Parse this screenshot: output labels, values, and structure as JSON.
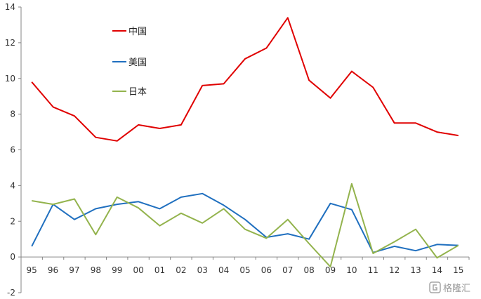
{
  "chart_data": {
    "type": "line",
    "title": "",
    "xlabel": "",
    "ylabel": "",
    "categories": [
      "95",
      "96",
      "97",
      "98",
      "99",
      "00",
      "01",
      "02",
      "03",
      "04",
      "05",
      "06",
      "07",
      "08",
      "09",
      "10",
      "11",
      "12",
      "13",
      "14",
      "15"
    ],
    "ylim": [
      -2,
      14
    ],
    "yticks": [
      -2,
      0,
      2,
      4,
      6,
      8,
      10,
      12,
      14
    ],
    "grid": false,
    "legend_placement": "top-left",
    "series": [
      {
        "name": "中国",
        "color": "#e00000",
        "values": [
          9.8,
          8.4,
          7.9,
          6.7,
          6.5,
          7.4,
          7.2,
          7.4,
          9.6,
          9.7,
          11.1,
          11.7,
          13.4,
          9.9,
          8.9,
          10.4,
          9.5,
          7.5,
          7.5,
          7.0,
          6.8
        ]
      },
      {
        "name": "美国",
        "color": "#1f6fbf",
        "values": [
          0.6,
          2.95,
          2.1,
          2.7,
          2.95,
          3.1,
          2.7,
          3.35,
          3.55,
          2.9,
          2.1,
          1.1,
          1.3,
          1.0,
          3.0,
          2.65,
          0.25,
          0.6,
          0.35,
          0.7,
          0.65
        ]
      },
      {
        "name": "日本",
        "color": "#93b34d",
        "values": [
          3.15,
          2.95,
          3.25,
          1.25,
          3.35,
          2.75,
          1.75,
          2.45,
          1.9,
          2.7,
          1.55,
          1.05,
          2.1,
          0.75,
          -0.55,
          4.1,
          0.2,
          0.85,
          1.55,
          -0.05,
          0.65
        ]
      }
    ]
  },
  "watermark": {
    "text": "格隆汇",
    "icon": "g-logo-icon"
  }
}
